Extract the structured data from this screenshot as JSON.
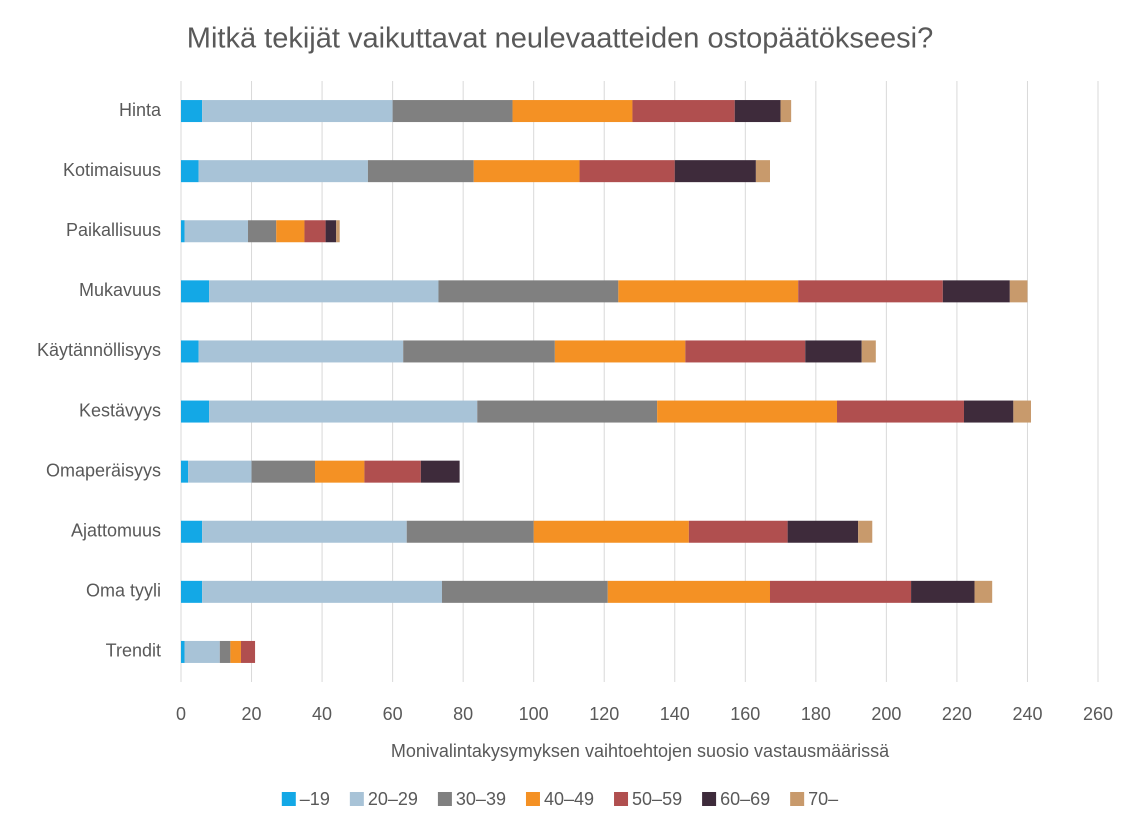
{
  "chart_data": {
    "type": "stacked-bar-horizontal",
    "title": "Mitkä tekijät vaikuttavat neulevaatteiden ostopäätökseesi?",
    "x_label": "Monivalintakysymyksen vaihtoehtojen suosio vastausmäärissä",
    "categories": [
      "Hinta",
      "Kotimaisuus",
      "Paikallisuus",
      "Mukavuus",
      "Käytännöllisyys",
      "Kestävyys",
      "Omaperäisyys",
      "Ajattomuus",
      "Oma tyyli",
      "Trendit"
    ],
    "series": [
      {
        "name": "–19",
        "color": "#13a8e6",
        "values": [
          6,
          5,
          1,
          8,
          5,
          8,
          2,
          6,
          6,
          1
        ]
      },
      {
        "name": "20–29",
        "color": "#a8c3d7",
        "values": [
          54,
          48,
          18,
          65,
          58,
          76,
          18,
          58,
          68,
          10
        ]
      },
      {
        "name": "30–39",
        "color": "#808080",
        "values": [
          34,
          30,
          8,
          51,
          43,
          51,
          18,
          36,
          47,
          3
        ]
      },
      {
        "name": "40–49",
        "color": "#f49124",
        "values": [
          34,
          30,
          8,
          51,
          37,
          51,
          14,
          44,
          46,
          3
        ]
      },
      {
        "name": "50–59",
        "color": "#b04f4f",
        "values": [
          29,
          27,
          6,
          41,
          34,
          36,
          16,
          28,
          40,
          4
        ]
      },
      {
        "name": "60–69",
        "color": "#3e2b3b",
        "values": [
          13,
          23,
          3,
          19,
          16,
          14,
          11,
          20,
          18,
          0
        ]
      },
      {
        "name": "70–",
        "color": "#c89a6c",
        "values": [
          3,
          4,
          1,
          5,
          4,
          5,
          0,
          4,
          5,
          0
        ]
      }
    ],
    "xlim": [
      0,
      260
    ],
    "xticks": [
      0,
      20,
      40,
      60,
      80,
      100,
      120,
      140,
      160,
      180,
      200,
      220,
      240,
      260
    ],
    "grid": true,
    "legend": "bottom"
  }
}
